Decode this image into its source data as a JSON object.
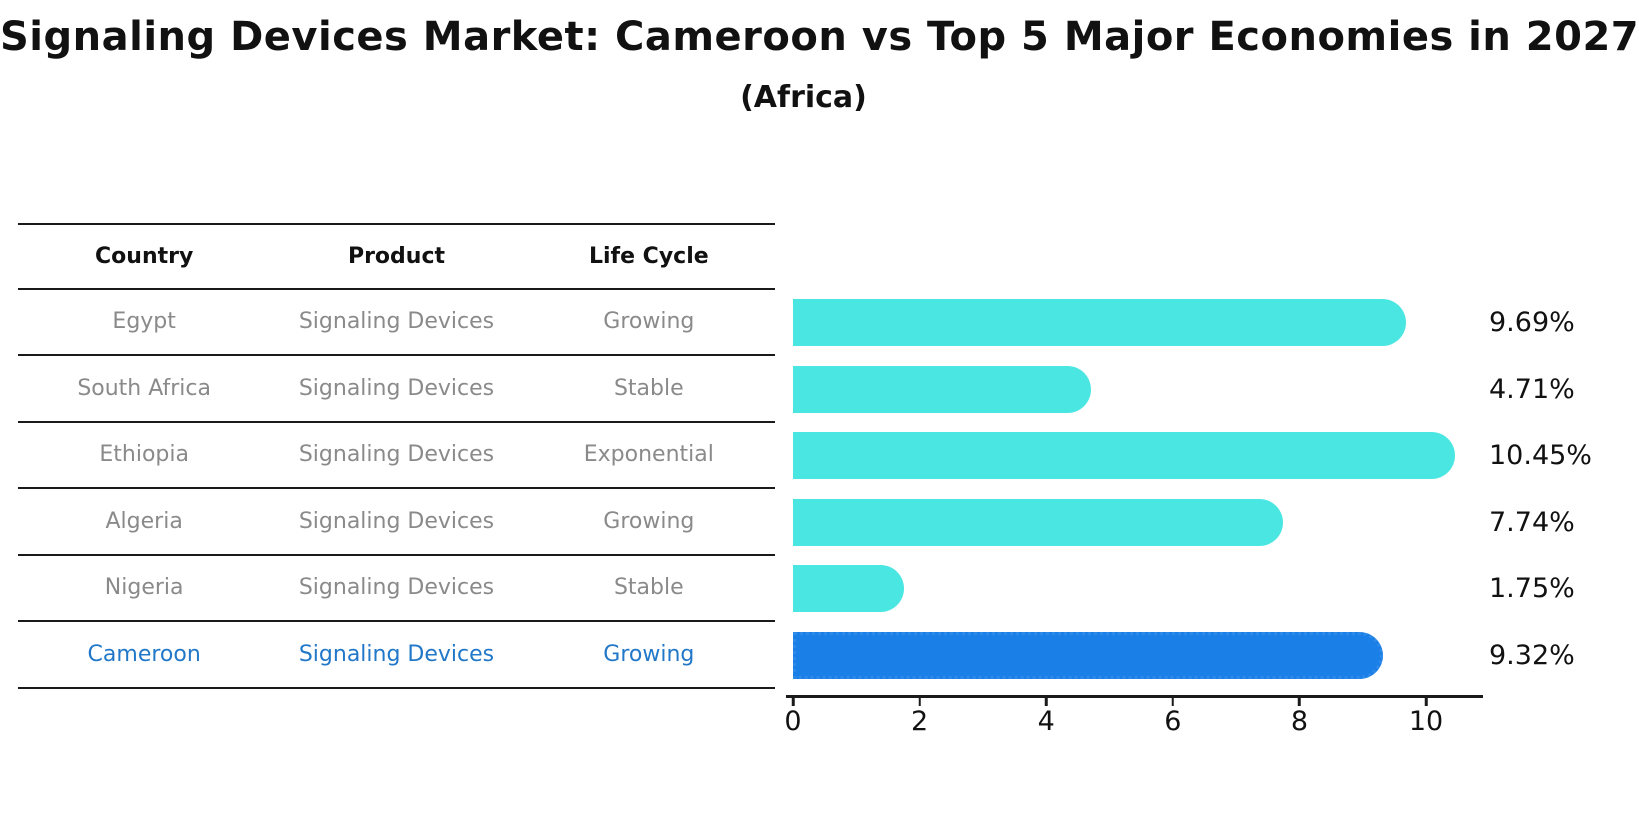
{
  "page": {
    "title": "Signaling Devices Market: Cameroon vs Top 5 Major Economies in 2027",
    "subtitle": "(Africa)"
  },
  "table": {
    "headers": [
      "Country",
      "Product",
      "Life Cycle"
    ],
    "rows": [
      {
        "country": "Egypt",
        "product": "Signaling Devices",
        "life_cycle": "Growing",
        "highlighted": false
      },
      {
        "country": "South Africa",
        "product": "Signaling Devices",
        "life_cycle": "Stable",
        "highlighted": false
      },
      {
        "country": "Ethiopia",
        "product": "Signaling Devices",
        "life_cycle": "Exponential",
        "highlighted": false
      },
      {
        "country": "Algeria",
        "product": "Signaling Devices",
        "life_cycle": "Growing",
        "highlighted": false
      },
      {
        "country": "Nigeria",
        "product": "Signaling Devices",
        "life_cycle": "Stable",
        "highlighted": false
      },
      {
        "country": "Cameroon",
        "product": "Signaling Devices",
        "life_cycle": "Growing",
        "highlighted": true
      }
    ]
  },
  "chart_data": {
    "type": "bar",
    "orientation": "horizontal",
    "title": "Signaling Devices Market: Cameroon vs Top 5 Major Economies in 2027",
    "subtitle": "(Africa)",
    "categories": [
      "Egypt",
      "South Africa",
      "Ethiopia",
      "Algeria",
      "Nigeria",
      "Cameroon"
    ],
    "values": [
      9.69,
      4.71,
      10.45,
      7.74,
      1.75,
      9.32
    ],
    "value_labels": [
      "9.69%",
      "4.71%",
      "10.45%",
      "7.74%",
      "1.75%",
      "9.32%"
    ],
    "highlight_category": "Cameroon",
    "xlabel": "",
    "ylabel": "",
    "xticks": [
      0,
      2,
      4,
      6,
      8,
      10
    ],
    "xlim": [
      0,
      10.9
    ],
    "grid": false,
    "legend": "none",
    "colors": {
      "bar": "#49e6e2",
      "highlight_bar": "#1b7fe8",
      "highlight_bar_edge": "#2e8ae8",
      "highlight_text": "#2278c8",
      "row_text": "#8a8a8a",
      "axis": "#1a1a1a",
      "label_text": "#111111"
    }
  }
}
